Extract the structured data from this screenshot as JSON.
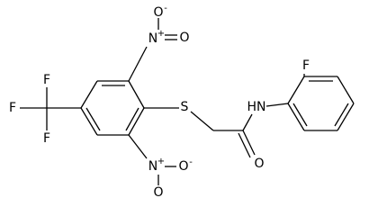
{
  "atoms": [
    {
      "label": "O",
      "charge": "-"
    },
    {
      "label": "N",
      "charge": "+"
    },
    {
      "label": "O"
    },
    {
      "label": "N",
      "charge": "+"
    },
    {
      "label": "O",
      "charge": "-"
    },
    {
      "label": "O"
    },
    {
      "label": "F"
    },
    {
      "label": "F"
    },
    {
      "label": "F"
    },
    {
      "label": "S"
    },
    {
      "label": "O"
    },
    {
      "label": "HN"
    },
    {
      "label": "F"
    }
  ]
}
